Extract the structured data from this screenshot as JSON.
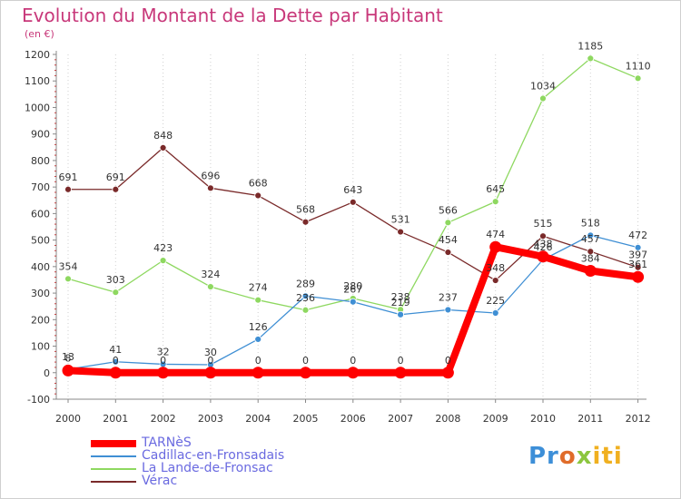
{
  "header": {
    "title": "Evolution du Montant de la Dette par Habitant",
    "unit": "(en €)"
  },
  "logo": {
    "text": "Proxiti"
  },
  "chart_data": {
    "type": "line",
    "title": "Evolution du Montant de la Dette par Habitant",
    "subtitle": "(en €)",
    "x": [
      "2000",
      "2001",
      "2002",
      "2003",
      "2004",
      "2005",
      "2006",
      "2007",
      "2008",
      "2009",
      "2010",
      "2011",
      "2012"
    ],
    "ylim": [
      -100,
      1200
    ],
    "yticks": [
      -100,
      0,
      100,
      200,
      300,
      400,
      500,
      600,
      700,
      800,
      900,
      1000,
      1100,
      1200
    ],
    "grid": "vertical dotted",
    "legend": "bottom-left",
    "series": [
      {
        "name": "TARNèS",
        "color": "#ff0000",
        "values": [
          8,
          0,
          0,
          0,
          0,
          0,
          0,
          0,
          0,
          474,
          438,
          384,
          361
        ],
        "labels": [
          "8",
          "0",
          "0",
          "0",
          "0",
          "0",
          "0",
          "0",
          "0",
          "474",
          "438",
          "384",
          "361"
        ]
      },
      {
        "name": "Cadillac-en-Fronsadais",
        "color": "#3f8fd4",
        "values": [
          13,
          41,
          32,
          30,
          126,
          289,
          267,
          219,
          237,
          225,
          426,
          518,
          472
        ],
        "labels": [
          "13",
          "41",
          "32",
          "30",
          "126",
          "289",
          "267",
          "219",
          "237",
          "225",
          "426",
          "518",
          "472"
        ]
      },
      {
        "name": "La Lande-de-Fronsac",
        "color": "#8ed860",
        "values": [
          354,
          303,
          423,
          324,
          274,
          236,
          280,
          238,
          566,
          645,
          1034,
          1185,
          1110
        ],
        "labels": [
          "354",
          "303",
          "423",
          "324",
          "274",
          "236",
          "280",
          "238",
          "566",
          "645",
          "1034",
          "1185",
          "1110"
        ]
      },
      {
        "name": "Vérac",
        "color": "#7a2a2a",
        "values": [
          691,
          691,
          848,
          696,
          668,
          568,
          643,
          531,
          454,
          348,
          515,
          457,
          397
        ],
        "labels": [
          "691",
          "691",
          "848",
          "696",
          "668",
          "568",
          "643",
          "531",
          "454",
          "348",
          "515",
          "457",
          "397"
        ]
      }
    ]
  }
}
